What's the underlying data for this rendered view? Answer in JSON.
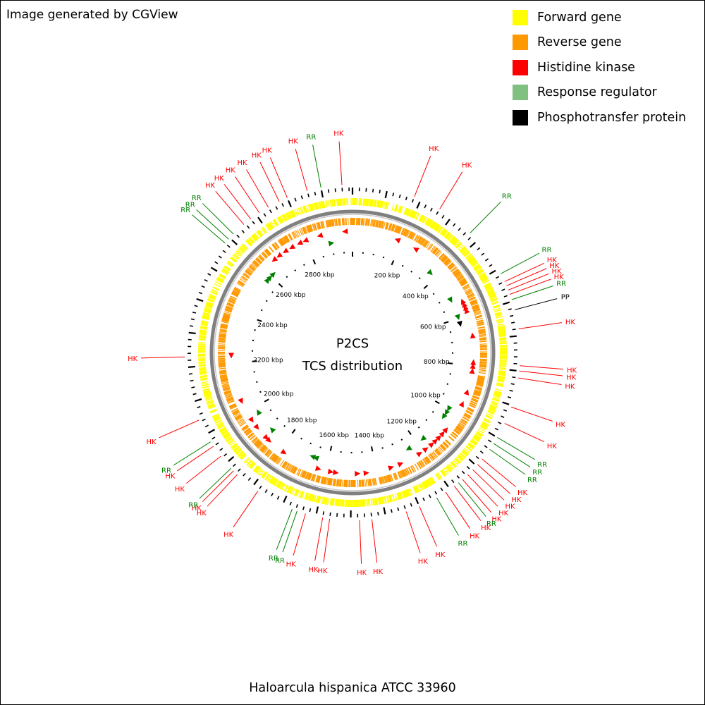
{
  "header": {
    "text": "Image generated by CGView"
  },
  "footer": {
    "text": "Haloarcula hispanica ATCC 33960"
  },
  "center": {
    "line1": "P2CS",
    "line2": "TCS distribution"
  },
  "legend": [
    {
      "label": "Forward gene",
      "color": "#ffff00"
    },
    {
      "label": "Reverse gene",
      "color": "#ff9900"
    },
    {
      "label": "Histidine kinase",
      "color": "#ff0000"
    },
    {
      "label": "Response regulator",
      "color": "#80c080"
    },
    {
      "label": "Phosphotransfer protein",
      "color": "#000000"
    }
  ],
  "colors": {
    "HK": "#ff0000",
    "RR": "#008000",
    "PP": "#000000",
    "ring": "#808080"
  },
  "chart_data": {
    "type": "circular-genome-map",
    "title": "P2CS TCS distribution",
    "genome": "Haloarcula hispanica ATCC 33960",
    "genome_length_kbp": 2990,
    "ruler_labels_kbp": [
      200,
      400,
      600,
      800,
      1000,
      1200,
      1400,
      1600,
      1800,
      2000,
      2200,
      2400,
      2600,
      2800
    ],
    "ruler_label_suffix": " kbp",
    "features": [
      {
        "type": "HK",
        "kbp": 180,
        "strand": "reverse"
      },
      {
        "type": "HK",
        "kbp": 260,
        "strand": "reverse"
      },
      {
        "type": "RR",
        "kbp": 370,
        "strand": "forward"
      },
      {
        "type": "RR",
        "kbp": 515,
        "strand": "forward"
      },
      {
        "type": "HK",
        "kbp": 540,
        "strand": "reverse"
      },
      {
        "type": "HK",
        "kbp": 553,
        "strand": "reverse"
      },
      {
        "type": "HK",
        "kbp": 566,
        "strand": "reverse"
      },
      {
        "type": "HK",
        "kbp": 579,
        "strand": "reverse"
      },
      {
        "type": "RR",
        "kbp": 595,
        "strand": "forward"
      },
      {
        "type": "PP",
        "kbp": 625,
        "strand": "forward"
      },
      {
        "type": "HK",
        "kbp": 680,
        "strand": "reverse"
      },
      {
        "type": "HK",
        "kbp": 785,
        "strand": "reverse"
      },
      {
        "type": "HK",
        "kbp": 800,
        "strand": "reverse"
      },
      {
        "type": "HK",
        "kbp": 820,
        "strand": "reverse"
      },
      {
        "type": "HK",
        "kbp": 905,
        "strand": "reverse"
      },
      {
        "type": "HK",
        "kbp": 955,
        "strand": "reverse"
      },
      {
        "type": "RR",
        "kbp": 1000,
        "strand": "forward"
      },
      {
        "type": "RR",
        "kbp": 1020,
        "strand": "forward"
      },
      {
        "type": "RR",
        "kbp": 1040,
        "strand": "forward"
      },
      {
        "type": "HK",
        "kbp": 1075,
        "strand": "reverse"
      },
      {
        "type": "HK",
        "kbp": 1095,
        "strand": "reverse"
      },
      {
        "type": "HK",
        "kbp": 1115,
        "strand": "reverse"
      },
      {
        "type": "HK",
        "kbp": 1135,
        "strand": "reverse"
      },
      {
        "type": "HK",
        "kbp": 1155,
        "strand": "reverse"
      },
      {
        "type": "RR",
        "kbp": 1170,
        "strand": "forward"
      },
      {
        "type": "HK",
        "kbp": 1185,
        "strand": "reverse"
      },
      {
        "type": "HK",
        "kbp": 1215,
        "strand": "reverse"
      },
      {
        "type": "RR",
        "kbp": 1245,
        "strand": "forward"
      },
      {
        "type": "HK",
        "kbp": 1300,
        "strand": "reverse"
      },
      {
        "type": "HK",
        "kbp": 1340,
        "strand": "reverse"
      },
      {
        "type": "HK",
        "kbp": 1440,
        "strand": "reverse"
      },
      {
        "type": "HK",
        "kbp": 1475,
        "strand": "reverse"
      },
      {
        "type": "HK",
        "kbp": 1560,
        "strand": "reverse"
      },
      {
        "type": "HK",
        "kbp": 1580,
        "strand": "reverse"
      },
      {
        "type": "HK",
        "kbp": 1630,
        "strand": "reverse"
      },
      {
        "type": "RR",
        "kbp": 1655,
        "strand": "forward"
      },
      {
        "type": "RR",
        "kbp": 1670,
        "strand": "forward"
      },
      {
        "type": "HK",
        "kbp": 1780,
        "strand": "reverse"
      },
      {
        "type": "HK",
        "kbp": 1855,
        "strand": "reverse"
      },
      {
        "type": "HK",
        "kbp": 1870,
        "strand": "reverse"
      },
      {
        "type": "RR",
        "kbp": 1880,
        "strand": "forward"
      },
      {
        "type": "HK",
        "kbp": 1925,
        "strand": "reverse"
      },
      {
        "type": "HK",
        "kbp": 1960,
        "strand": "reverse"
      },
      {
        "type": "RR",
        "kbp": 1975,
        "strand": "forward"
      },
      {
        "type": "HK",
        "kbp": 2045,
        "strand": "reverse"
      },
      {
        "type": "HK",
        "kbp": 2230,
        "strand": "reverse"
      },
      {
        "type": "RR",
        "kbp": 2580,
        "strand": "forward"
      },
      {
        "type": "RR",
        "kbp": 2595,
        "strand": "forward"
      },
      {
        "type": "RR",
        "kbp": 2615,
        "strand": "forward"
      },
      {
        "type": "HK",
        "kbp": 2655,
        "strand": "reverse"
      },
      {
        "type": "HK",
        "kbp": 2680,
        "strand": "reverse"
      },
      {
        "type": "HK",
        "kbp": 2710,
        "strand": "reverse"
      },
      {
        "type": "HK",
        "kbp": 2740,
        "strand": "reverse"
      },
      {
        "type": "HK",
        "kbp": 2775,
        "strand": "reverse"
      },
      {
        "type": "HK",
        "kbp": 2800,
        "strand": "reverse"
      },
      {
        "type": "HK",
        "kbp": 2860,
        "strand": "reverse"
      },
      {
        "type": "RR",
        "kbp": 2900,
        "strand": "forward"
      },
      {
        "type": "HK",
        "kbp": 2960,
        "strand": "reverse"
      }
    ]
  }
}
